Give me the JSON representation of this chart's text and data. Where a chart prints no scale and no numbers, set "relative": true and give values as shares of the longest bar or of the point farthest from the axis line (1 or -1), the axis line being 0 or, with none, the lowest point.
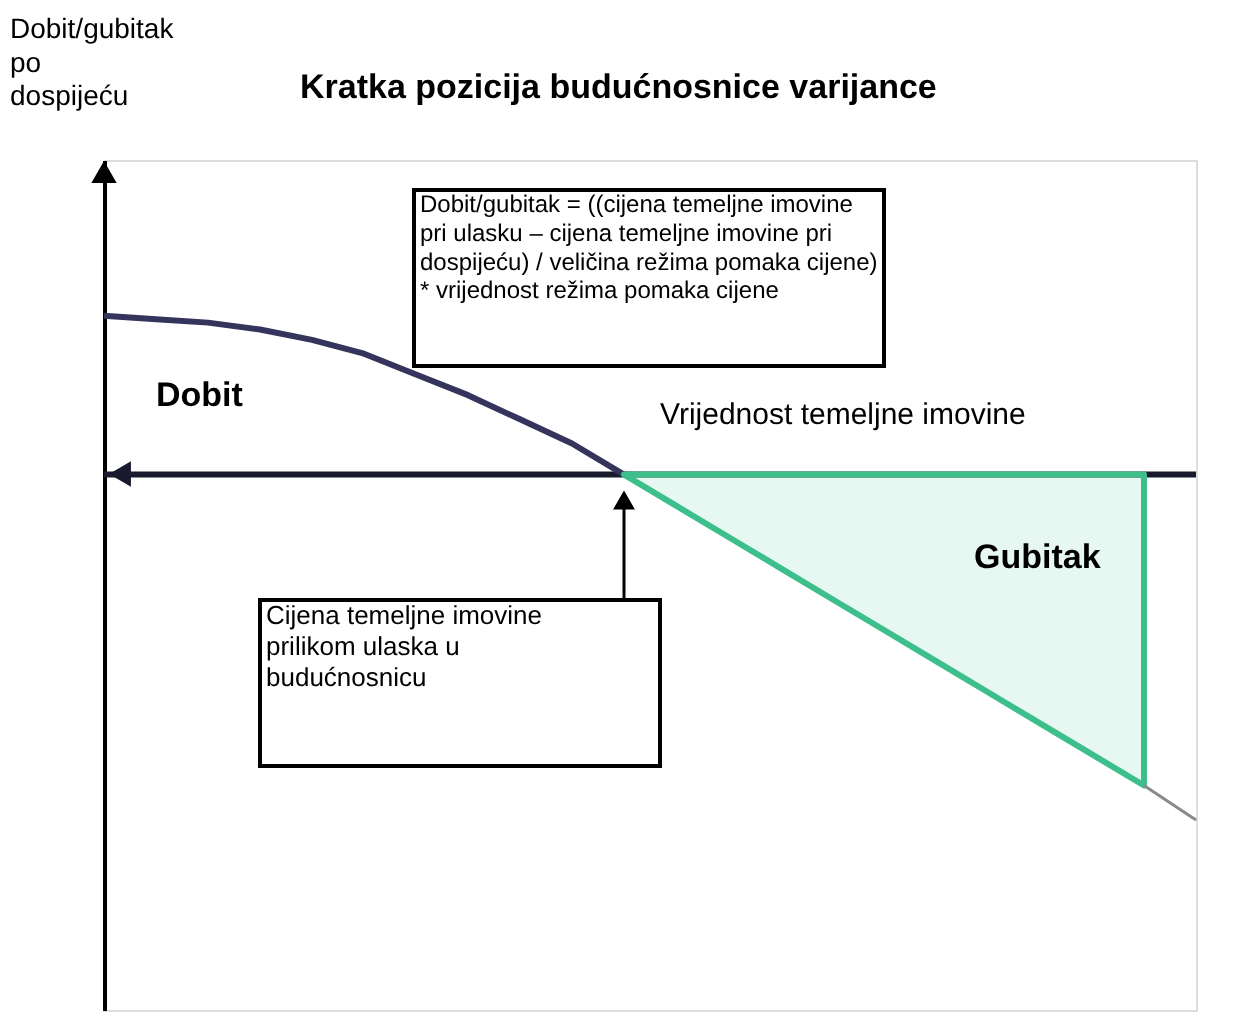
{
  "chart_data": {
    "type": "line",
    "title": "Kratka pozicija budućnosnice varijance",
    "xlabel": "Vrijednost temeljne imovine",
    "relative": true,
    "categories": [
      null,
      null,
      null,
      null,
      null,
      null,
      null,
      null,
      null,
      null,
      null,
      null,
      null,
      null,
      null,
      null,
      null,
      null,
      null,
      null,
      null,
      null
    ],
    "series": [
      {
        "color": "#34345c",
        "values": [
          0.46,
          0.45,
          0.44,
          0.42,
          0.39,
          0.35,
          0.29,
          0.23,
          0.16,
          0.09,
          0,
          null,
          null,
          null,
          null,
          null,
          null,
          null,
          null,
          null,
          null,
          null
        ]
      },
      {
        "type": "area",
        "color": "#3cbf8a",
        "values": [
          null,
          null,
          null,
          null,
          null,
          null,
          null,
          null,
          null,
          null,
          0,
          -0.09,
          -0.18,
          -0.27,
          -0.36,
          -0.45,
          -0.54,
          -0.63,
          -0.72,
          -0.81,
          -0.9,
          null
        ]
      },
      {
        "color": "#8a8a8a",
        "values": [
          null,
          null,
          null,
          null,
          null,
          null,
          null,
          null,
          null,
          null,
          null,
          null,
          null,
          null,
          null,
          null,
          null,
          null,
          null,
          null,
          -0.9,
          -1
        ]
      }
    ],
    "annotations": [
      "Dobit/gubitak = ((cijena temeljne imovine\npri ulasku – cijena temeljne imovine pri\ndospijeću) / veličina režima pomaka cijene)\n* vrijednost režima pomaka cijene",
      "Dobit",
      "Gubitak",
      "Cijena temeljne imovine\nprilikom ulaska u\nbudućnosnicu",
      "Dobit/gubitak\npo\ndospijeću"
    ]
  }
}
